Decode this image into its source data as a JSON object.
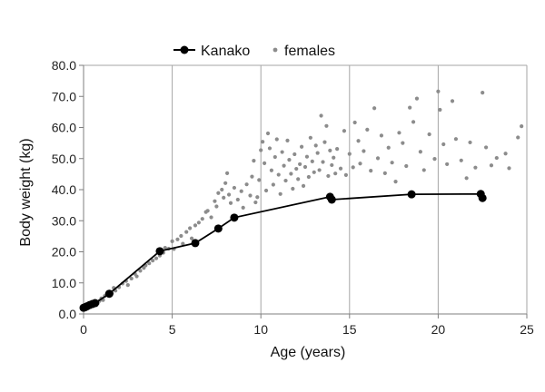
{
  "chart_data": {
    "type": "scatter",
    "xlabel": "Age (years)",
    "ylabel": "Body weight (kg)",
    "xlim": [
      0,
      25
    ],
    "ylim": [
      0,
      80
    ],
    "x_ticks": [
      "0",
      "5",
      "10",
      "15",
      "20",
      "25"
    ],
    "y_ticks": [
      "0.0",
      "10.0",
      "20.0",
      "30.0",
      "40.0",
      "50.0",
      "60.0",
      "70.0",
      "80.0"
    ],
    "grid": "vertical lines at major x ticks",
    "legend_position": "top-center",
    "series": [
      {
        "name": "Kanako",
        "kind": "line-with-markers",
        "color": "#000000",
        "points": [
          [
            0.0,
            2.0
          ],
          [
            0.1,
            2.2
          ],
          [
            0.2,
            2.5
          ],
          [
            0.35,
            2.9
          ],
          [
            0.5,
            3.2
          ],
          [
            0.65,
            3.5
          ],
          [
            1.45,
            6.5
          ],
          [
            4.3,
            20.2
          ],
          [
            6.3,
            22.8
          ],
          [
            7.6,
            27.5
          ],
          [
            8.5,
            31.0
          ],
          [
            13.9,
            37.7
          ],
          [
            14.0,
            36.8
          ],
          [
            18.5,
            38.5
          ],
          [
            22.4,
            38.6
          ],
          [
            22.5,
            37.3
          ]
        ]
      },
      {
        "name": "females",
        "kind": "scatter",
        "color": "#8c8c8c",
        "points": [
          [
            0.1,
            2.4
          ],
          [
            0.2,
            2.1
          ],
          [
            0.3,
            2.7
          ],
          [
            0.4,
            3.0
          ],
          [
            0.5,
            3.3
          ],
          [
            0.6,
            2.8
          ],
          [
            0.7,
            3.9
          ],
          [
            0.8,
            3.4
          ],
          [
            0.9,
            4.2
          ],
          [
            1.0,
            5.0
          ],
          [
            1.1,
            4.5
          ],
          [
            1.2,
            5.8
          ],
          [
            1.3,
            6.3
          ],
          [
            1.5,
            7.1
          ],
          [
            1.6,
            6.6
          ],
          [
            1.7,
            8.4
          ],
          [
            1.8,
            7.5
          ],
          [
            2.0,
            8.6
          ],
          [
            2.2,
            9.8
          ],
          [
            2.4,
            10.6
          ],
          [
            2.5,
            9.3
          ],
          [
            2.7,
            11.4
          ],
          [
            2.9,
            12.9
          ],
          [
            3.0,
            12.1
          ],
          [
            3.2,
            13.9
          ],
          [
            3.4,
            14.8
          ],
          [
            3.5,
            15.6
          ],
          [
            3.7,
            16.3
          ],
          [
            3.9,
            17.2
          ],
          [
            4.1,
            17.9
          ],
          [
            4.3,
            18.8
          ],
          [
            4.5,
            19.7
          ],
          [
            4.6,
            21.3
          ],
          [
            4.8,
            21.0
          ],
          [
            5.0,
            23.4
          ],
          [
            5.1,
            20.9
          ],
          [
            5.3,
            24.0
          ],
          [
            5.5,
            25.1
          ],
          [
            5.6,
            22.6
          ],
          [
            5.8,
            26.4
          ],
          [
            6.0,
            27.6
          ],
          [
            6.1,
            24.3
          ],
          [
            6.3,
            28.5
          ],
          [
            6.5,
            29.4
          ],
          [
            6.7,
            30.6
          ],
          [
            6.9,
            32.8
          ],
          [
            7.0,
            33.2
          ],
          [
            7.2,
            31.1
          ],
          [
            7.4,
            36.3
          ],
          [
            7.5,
            34.6
          ],
          [
            7.6,
            38.9
          ],
          [
            7.8,
            40.0
          ],
          [
            7.9,
            37.4
          ],
          [
            8.0,
            42.1
          ],
          [
            8.1,
            45.3
          ],
          [
            8.2,
            38.4
          ],
          [
            8.3,
            35.7
          ],
          [
            8.5,
            40.6
          ],
          [
            8.7,
            36.8
          ],
          [
            8.9,
            39.5
          ],
          [
            9.0,
            34.2
          ],
          [
            9.2,
            41.7
          ],
          [
            9.4,
            38.1
          ],
          [
            9.5,
            44.2
          ],
          [
            9.6,
            49.3
          ],
          [
            9.7,
            35.9
          ],
          [
            9.8,
            37.6
          ],
          [
            9.9,
            43.1
          ],
          [
            10.0,
            52.7
          ],
          [
            10.1,
            55.4
          ],
          [
            10.2,
            48.5
          ],
          [
            10.3,
            39.7
          ],
          [
            10.4,
            58.1
          ],
          [
            10.5,
            53.3
          ],
          [
            10.6,
            46.2
          ],
          [
            10.7,
            41.6
          ],
          [
            10.8,
            50.5
          ],
          [
            10.9,
            56.2
          ],
          [
            11.0,
            44.8
          ],
          [
            11.1,
            38.6
          ],
          [
            11.2,
            52.1
          ],
          [
            11.3,
            47.7
          ],
          [
            11.4,
            42.9
          ],
          [
            11.5,
            55.8
          ],
          [
            11.6,
            49.6
          ],
          [
            11.7,
            45.1
          ],
          [
            11.8,
            40.3
          ],
          [
            11.9,
            51.4
          ],
          [
            12.0,
            46.7
          ],
          [
            12.1,
            43.4
          ],
          [
            12.2,
            48.2
          ],
          [
            12.3,
            53.8
          ],
          [
            12.4,
            41.2
          ],
          [
            12.5,
            47.3
          ],
          [
            12.6,
            50.6
          ],
          [
            12.7,
            44.1
          ],
          [
            12.8,
            56.7
          ],
          [
            12.9,
            49.1
          ],
          [
            13.0,
            45.6
          ],
          [
            13.1,
            54.2
          ],
          [
            13.2,
            51.8
          ],
          [
            13.3,
            46.3
          ],
          [
            13.4,
            63.8
          ],
          [
            13.5,
            48.9
          ],
          [
            13.6,
            55.3
          ],
          [
            13.7,
            60.5
          ],
          [
            13.8,
            44.4
          ],
          [
            13.9,
            52.6
          ],
          [
            14.0,
            47.9
          ],
          [
            14.1,
            50.3
          ],
          [
            14.2,
            45.2
          ],
          [
            14.3,
            53.1
          ],
          [
            14.5,
            46.8
          ],
          [
            14.7,
            58.9
          ],
          [
            14.8,
            44.7
          ],
          [
            15.0,
            51.5
          ],
          [
            15.2,
            47.2
          ],
          [
            15.3,
            61.6
          ],
          [
            15.5,
            55.7
          ],
          [
            15.6,
            48.4
          ],
          [
            15.8,
            52.4
          ],
          [
            16.0,
            59.3
          ],
          [
            16.2,
            46.1
          ],
          [
            16.4,
            66.2
          ],
          [
            16.6,
            50.1
          ],
          [
            16.8,
            57.4
          ],
          [
            17.0,
            45.3
          ],
          [
            17.2,
            53.5
          ],
          [
            17.4,
            48.7
          ],
          [
            17.6,
            42.6
          ],
          [
            17.8,
            58.3
          ],
          [
            18.0,
            55.0
          ],
          [
            18.2,
            47.6
          ],
          [
            18.4,
            66.4
          ],
          [
            18.6,
            61.8
          ],
          [
            18.8,
            69.3
          ],
          [
            19.0,
            52.2
          ],
          [
            19.2,
            46.3
          ],
          [
            19.5,
            57.8
          ],
          [
            19.8,
            49.9
          ],
          [
            20.0,
            71.6
          ],
          [
            20.1,
            65.7
          ],
          [
            20.3,
            54.6
          ],
          [
            20.5,
            48.2
          ],
          [
            20.8,
            68.5
          ],
          [
            21.0,
            56.3
          ],
          [
            21.3,
            49.4
          ],
          [
            21.6,
            43.7
          ],
          [
            21.8,
            55.2
          ],
          [
            22.1,
            47.1
          ],
          [
            22.5,
            71.2
          ],
          [
            22.7,
            53.6
          ],
          [
            23.0,
            47.8
          ],
          [
            23.3,
            50.2
          ],
          [
            23.8,
            51.6
          ],
          [
            24.0,
            46.9
          ],
          [
            24.5,
            56.8
          ],
          [
            24.7,
            60.4
          ]
        ]
      }
    ]
  },
  "colors": {
    "kanako": "#000000",
    "females": "#8c8c8c",
    "axis": "#7f7f7f",
    "grid": "#a6a6a6"
  }
}
